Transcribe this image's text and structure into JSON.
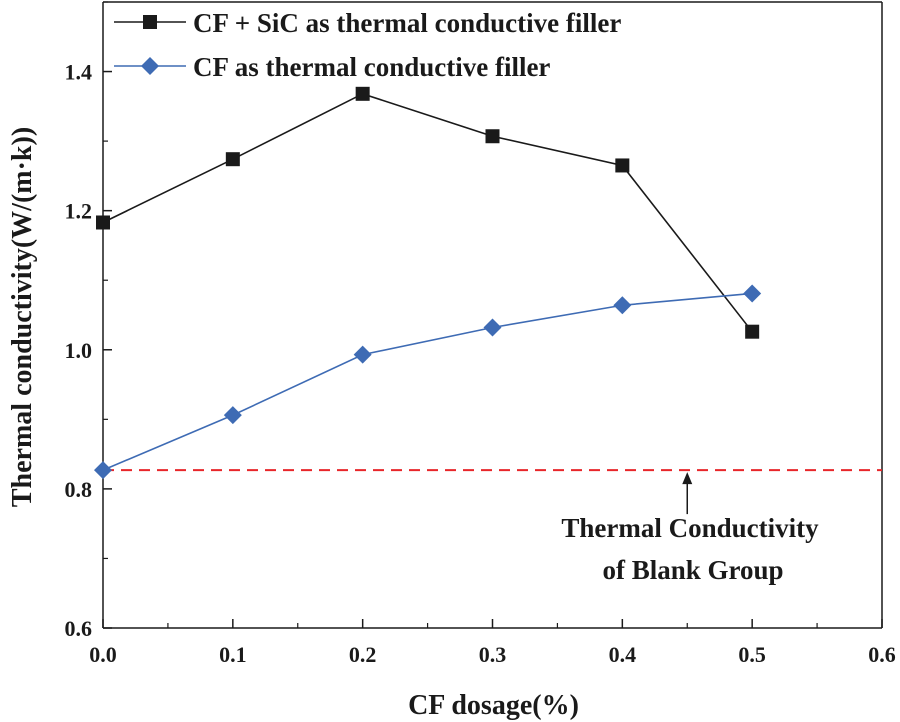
{
  "chart_data": {
    "type": "line",
    "xlabel": "CF dosage(%)",
    "ylabel": "Thermal conductivity(W/(m·k))",
    "xlim": [
      0.0,
      0.6
    ],
    "ylim": [
      0.6,
      1.5
    ],
    "x_ticks": [
      "0.0",
      "0.1",
      "0.2",
      "0.3",
      "0.4",
      "0.5",
      "0.6"
    ],
    "y_ticks": [
      "0.6",
      "0.8",
      "1.0",
      "1.2",
      "1.4"
    ],
    "legend_position": "top-left",
    "grid": false,
    "series": [
      {
        "name": "CF + SiC as thermal conductive filler",
        "color": "#1a1a1a",
        "marker": "square",
        "x": [
          0.0,
          0.1,
          0.2,
          0.3,
          0.4,
          0.5
        ],
        "values": [
          1.183,
          1.274,
          1.368,
          1.307,
          1.265,
          1.026
        ]
      },
      {
        "name": "CF as thermal conductive filler",
        "color": "#3e6bb4",
        "marker": "diamond",
        "x": [
          0.0,
          0.1,
          0.2,
          0.3,
          0.4,
          0.5
        ],
        "values": [
          0.827,
          0.906,
          0.993,
          1.032,
          1.064,
          1.081
        ]
      }
    ],
    "reference_line": {
      "value": 0.827,
      "color": "#e8262a",
      "style": "dashed"
    },
    "annotation": {
      "line1": "Thermal Conductivity",
      "line2": "of Blank Group",
      "x": 0.45
    }
  }
}
